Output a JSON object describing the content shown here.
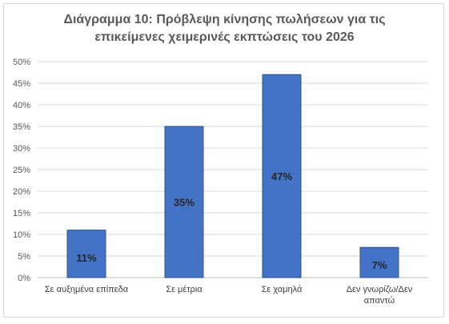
{
  "chart_data": {
    "type": "bar",
    "title_lines": [
      "Διάγραμμα 10: Πρόβλεψη κίνησης πωλήσεων για τις",
      "επικείμενες χειμερινές εκπτώσεις του 2026"
    ],
    "categories": [
      [
        "Σε αυξημένα επίπεδα"
      ],
      [
        "Σε μέτρια"
      ],
      [
        "Σε χαμηλά"
      ],
      [
        "Δεν γνωρίζω/Δεν",
        "απαντώ"
      ]
    ],
    "values": [
      11,
      35,
      47,
      7
    ],
    "data_labels": [
      "11%",
      "35%",
      "47%",
      "7%"
    ],
    "ylim": [
      0,
      50
    ],
    "y_ticks": [
      "0%",
      "5%",
      "10%",
      "15%",
      "20%",
      "25%",
      "30%",
      "35%",
      "40%",
      "45%",
      "50%"
    ],
    "y_tick_values": [
      0,
      5,
      10,
      15,
      20,
      25,
      30,
      35,
      40,
      45,
      50
    ],
    "grid": true,
    "legend": "none",
    "bar_color": "#4472c4",
    "bar_border_color": "#2f5597"
  }
}
